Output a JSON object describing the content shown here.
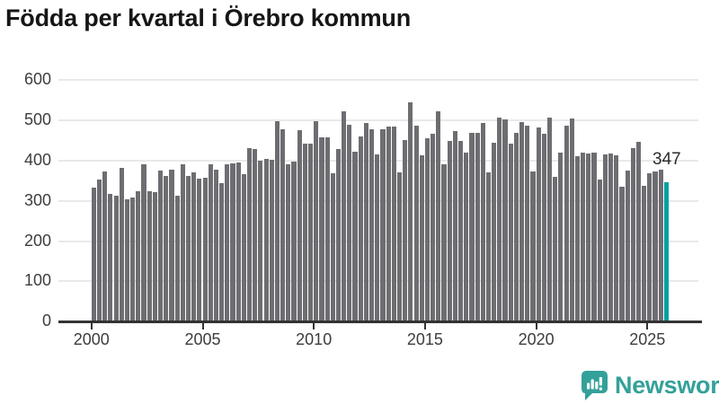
{
  "title": "Födda per kvartal i Örebro kommun",
  "annotation": {
    "label": "347",
    "value": 347,
    "quarter": "2025 Q4"
  },
  "branding": {
    "name": "Newsworthy",
    "icon": "speech-bubble-bar-chart-icon"
  },
  "colors": {
    "bar": "#6d6d72",
    "highlight_bar": "#00a0a2",
    "grid": "#e9e9e9",
    "axis": "#333333",
    "tick_text": "#3d3d3d",
    "title_text": "#161616",
    "brand_teal": "#34a09a"
  },
  "chart_data": {
    "type": "bar",
    "title": "Födda per kvartal i Örebro kommun",
    "xlabel": "",
    "ylabel": "",
    "ylim": [
      0,
      600
    ],
    "y_ticks": [
      0,
      100,
      200,
      300,
      400,
      500,
      600
    ],
    "x_tick_labels": [
      "2000",
      "2005",
      "2010",
      "2015",
      "2020",
      "2025"
    ],
    "grid": "horizontal",
    "legend": "none",
    "highlight_last_bar": true,
    "last_bar_label": "347",
    "categories": [
      "2000 Q1",
      "2000 Q2",
      "2000 Q3",
      "2000 Q4",
      "2001 Q1",
      "2001 Q2",
      "2001 Q3",
      "2001 Q4",
      "2002 Q1",
      "2002 Q2",
      "2002 Q3",
      "2002 Q4",
      "2003 Q1",
      "2003 Q2",
      "2003 Q3",
      "2003 Q4",
      "2004 Q1",
      "2004 Q2",
      "2004 Q3",
      "2004 Q4",
      "2005 Q1",
      "2005 Q2",
      "2005 Q3",
      "2005 Q4",
      "2006 Q1",
      "2006 Q2",
      "2006 Q3",
      "2006 Q4",
      "2007 Q1",
      "2007 Q2",
      "2007 Q3",
      "2007 Q4",
      "2008 Q1",
      "2008 Q2",
      "2008 Q3",
      "2008 Q4",
      "2009 Q1",
      "2009 Q2",
      "2009 Q3",
      "2009 Q4",
      "2010 Q1",
      "2010 Q2",
      "2010 Q3",
      "2010 Q4",
      "2011 Q1",
      "2011 Q2",
      "2011 Q3",
      "2011 Q4",
      "2012 Q1",
      "2012 Q2",
      "2012 Q3",
      "2012 Q4",
      "2013 Q1",
      "2013 Q2",
      "2013 Q3",
      "2013 Q4",
      "2014 Q1",
      "2014 Q2",
      "2014 Q3",
      "2014 Q4",
      "2015 Q1",
      "2015 Q2",
      "2015 Q3",
      "2015 Q4",
      "2016 Q1",
      "2016 Q2",
      "2016 Q3",
      "2016 Q4",
      "2017 Q1",
      "2017 Q2",
      "2017 Q3",
      "2017 Q4",
      "2018 Q1",
      "2018 Q2",
      "2018 Q3",
      "2018 Q4",
      "2019 Q1",
      "2019 Q2",
      "2019 Q3",
      "2019 Q4",
      "2020 Q1",
      "2020 Q2",
      "2020 Q3",
      "2020 Q4",
      "2021 Q1",
      "2021 Q2",
      "2021 Q3",
      "2021 Q4",
      "2022 Q1",
      "2022 Q2",
      "2022 Q3",
      "2022 Q4",
      "2023 Q1",
      "2023 Q2",
      "2023 Q3",
      "2023 Q4",
      "2024 Q1",
      "2024 Q2",
      "2024 Q3",
      "2024 Q4",
      "2025 Q1",
      "2025 Q2",
      "2025 Q3",
      "2025 Q4"
    ],
    "values": [
      334,
      352,
      374,
      318,
      313,
      382,
      305,
      308,
      325,
      390,
      323,
      321,
      375,
      362,
      377,
      312,
      390,
      363,
      370,
      355,
      358,
      390,
      377,
      345,
      390,
      394,
      396,
      366,
      431,
      430,
      400,
      404,
      403,
      497,
      477,
      392,
      398,
      476,
      442,
      442,
      498,
      458,
      458,
      369,
      430,
      522,
      490,
      423,
      460,
      494,
      479,
      416,
      479,
      485,
      485,
      370,
      451,
      546,
      487,
      414,
      456,
      467,
      523,
      390,
      450,
      473,
      449,
      420,
      468,
      468,
      493,
      370,
      445,
      506,
      503,
      442,
      468,
      496,
      488,
      373,
      482,
      467,
      507,
      360,
      420,
      488,
      505,
      410,
      421,
      418,
      419,
      352,
      415,
      418,
      413,
      336,
      376,
      432,
      446,
      338,
      369,
      373,
      378,
      347
    ]
  }
}
